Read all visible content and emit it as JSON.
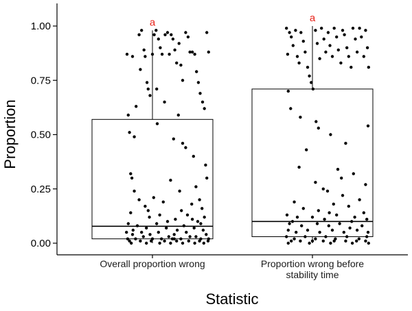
{
  "chart_data": {
    "type": "boxplot",
    "xlabel": "Statistic",
    "ylabel": "Proportion",
    "ylim": [
      -0.05,
      1.1
    ],
    "yticks": [
      0.0,
      0.25,
      0.5,
      0.75,
      1.0
    ],
    "ytick_labels": [
      "0.00",
      "0.25",
      "0.50",
      "0.75",
      "1.00"
    ],
    "grid": false,
    "groups": [
      {
        "label_lines": [
          "Overall proportion wrong"
        ],
        "significance_label": "a",
        "q1": 0.02,
        "median": 0.078,
        "q3": 0.57,
        "whisker_low": 0.0,
        "whisker_high": 0.98,
        "points": [
          [
            -0.42,
            0.87
          ],
          [
            -0.4,
            0.59
          ],
          [
            -0.38,
            0.51
          ],
          [
            -0.36,
            0.32
          ],
          [
            -0.34,
            0.3
          ],
          [
            -0.3,
            0.49
          ],
          [
            -0.27,
            0.63
          ],
          [
            -0.22,
            0.96
          ],
          [
            -0.18,
            0.98
          ],
          [
            -0.14,
            0.89
          ],
          [
            -0.12,
            0.86
          ],
          [
            -0.09,
            0.74
          ],
          [
            -0.07,
            0.71
          ],
          [
            -0.04,
            0.68
          ],
          [
            0.0,
            0.87
          ],
          [
            0.03,
            0.96
          ],
          [
            0.06,
            0.98
          ],
          [
            0.1,
            0.94
          ],
          [
            0.13,
            0.9
          ],
          [
            0.16,
            0.87
          ],
          [
            0.21,
            0.96
          ],
          [
            0.25,
            0.97
          ],
          [
            0.28,
            0.87
          ],
          [
            0.31,
            0.96
          ],
          [
            0.34,
            0.94
          ],
          [
            0.37,
            0.89
          ],
          [
            0.4,
            0.83
          ],
          [
            0.44,
            0.92
          ],
          [
            0.47,
            0.82
          ],
          [
            0.5,
            0.75
          ],
          [
            0.55,
            0.97
          ],
          [
            0.59,
            0.95
          ],
          [
            0.62,
            0.88
          ],
          [
            0.66,
            0.88
          ],
          [
            0.7,
            0.87
          ],
          [
            0.73,
            0.79
          ],
          [
            0.76,
            0.74
          ],
          [
            0.79,
            0.69
          ],
          [
            0.83,
            0.65
          ],
          [
            0.86,
            0.62
          ],
          [
            0.9,
            0.97
          ],
          [
            0.93,
            0.88
          ],
          [
            -0.33,
            0.86
          ],
          [
            -0.2,
            0.8
          ],
          [
            0.07,
            0.71
          ],
          [
            0.2,
            0.65
          ],
          [
            0.43,
            0.59
          ],
          [
            0.08,
            0.55
          ],
          [
            0.35,
            0.48
          ],
          [
            0.5,
            0.46
          ],
          [
            0.55,
            0.44
          ],
          [
            0.68,
            0.4
          ],
          [
            0.88,
            0.36
          ],
          [
            0.3,
            0.29
          ],
          [
            0.72,
            0.26
          ],
          [
            0.45,
            0.24
          ],
          [
            0.78,
            0.2
          ],
          [
            0.9,
            0.3
          ],
          [
            -0.3,
            0.24
          ],
          [
            -0.22,
            0.2
          ],
          [
            -0.12,
            0.17
          ],
          [
            0.02,
            0.21
          ],
          [
            0.18,
            0.19
          ],
          [
            0.48,
            0.15
          ],
          [
            0.65,
            0.18
          ],
          [
            0.82,
            0.16
          ],
          [
            -0.36,
            0.14
          ],
          [
            -0.05,
            0.12
          ],
          [
            0.12,
            0.13
          ],
          [
            0.38,
            0.11
          ],
          [
            0.58,
            0.13
          ],
          [
            0.75,
            0.1
          ],
          [
            0.86,
            0.12
          ],
          [
            -0.4,
            0.09
          ],
          [
            -0.25,
            0.08
          ],
          [
            -0.1,
            0.07
          ],
          [
            0.07,
            0.09
          ],
          [
            0.23,
            0.07
          ],
          [
            0.41,
            0.06
          ],
          [
            0.52,
            0.08
          ],
          [
            0.69,
            0.07
          ],
          [
            0.84,
            0.06
          ],
          [
            -0.43,
            0.05
          ],
          [
            -0.33,
            0.04
          ],
          [
            -0.18,
            0.05
          ],
          [
            -0.04,
            0.04
          ],
          [
            0.1,
            0.05
          ],
          [
            0.27,
            0.03
          ],
          [
            0.36,
            0.04
          ],
          [
            0.56,
            0.05
          ],
          [
            0.72,
            0.03
          ],
          [
            0.89,
            0.04
          ],
          [
            -0.41,
            0.02
          ],
          [
            -0.28,
            0.02
          ],
          [
            -0.15,
            0.03
          ],
          [
            0.0,
            0.02
          ],
          [
            0.15,
            0.02
          ],
          [
            0.33,
            0.02
          ],
          [
            0.47,
            0.02
          ],
          [
            0.62,
            0.03
          ],
          [
            0.8,
            0.02
          ],
          [
            0.93,
            0.02
          ],
          [
            -0.38,
            0.01
          ],
          [
            -0.2,
            0.01
          ],
          [
            -0.02,
            0.01
          ],
          [
            0.2,
            0.01
          ],
          [
            0.4,
            0.01
          ],
          [
            0.6,
            0.01
          ],
          [
            0.78,
            0.01
          ],
          [
            0.92,
            0.01
          ],
          [
            -0.35,
            0.0
          ],
          [
            -0.1,
            0.0
          ],
          [
            0.12,
            0.0
          ],
          [
            0.3,
            0.0
          ],
          [
            0.5,
            0.0
          ],
          [
            0.7,
            0.0
          ],
          [
            0.85,
            0.0
          ],
          [
            -0.32,
            0.06
          ],
          [
            0.25,
            0.1
          ],
          [
            0.66,
            0.11
          ],
          [
            -0.07,
            0.15
          ],
          [
            0.36,
            0.02
          ],
          [
            0.8,
            0.09
          ]
        ]
      },
      {
        "label_lines": [
          "Proportion wrong before",
          "stability time"
        ],
        "significance_label": "a",
        "q1": 0.03,
        "median": 0.1,
        "q3": 0.71,
        "whisker_low": 0.0,
        "whisker_high": 1.0,
        "points": [
          [
            -0.43,
            0.99
          ],
          [
            -0.41,
            0.87
          ],
          [
            -0.4,
            0.7
          ],
          [
            -0.38,
            0.97
          ],
          [
            -0.35,
            0.95
          ],
          [
            -0.32,
            0.91
          ],
          [
            -0.28,
            0.98
          ],
          [
            -0.25,
            0.86
          ],
          [
            -0.22,
            0.83
          ],
          [
            -0.19,
            0.97
          ],
          [
            -0.15,
            0.93
          ],
          [
            -0.12,
            0.88
          ],
          [
            -0.08,
            0.81
          ],
          [
            -0.05,
            0.77
          ],
          [
            -0.02,
            0.74
          ],
          [
            0.01,
            0.71
          ],
          [
            0.05,
            0.98
          ],
          [
            0.08,
            0.92
          ],
          [
            0.12,
            0.85
          ],
          [
            0.15,
            0.99
          ],
          [
            0.19,
            0.94
          ],
          [
            0.22,
            0.88
          ],
          [
            0.26,
            0.97
          ],
          [
            0.29,
            0.91
          ],
          [
            0.33,
            0.86
          ],
          [
            0.36,
            0.99
          ],
          [
            0.4,
            0.95
          ],
          [
            0.43,
            0.89
          ],
          [
            0.47,
            0.83
          ],
          [
            0.5,
            0.98
          ],
          [
            0.53,
            0.96
          ],
          [
            0.57,
            0.9
          ],
          [
            0.6,
            0.86
          ],
          [
            0.64,
            0.81
          ],
          [
            0.67,
            0.99
          ],
          [
            0.71,
            0.94
          ],
          [
            0.74,
            0.88
          ],
          [
            0.78,
            0.99
          ],
          [
            0.81,
            0.95
          ],
          [
            0.85,
            0.86
          ],
          [
            0.88,
            0.98
          ],
          [
            0.91,
            0.9
          ],
          [
            0.93,
            0.81
          ],
          [
            -0.36,
            0.62
          ],
          [
            -0.2,
            0.58
          ],
          [
            0.06,
            0.56
          ],
          [
            0.1,
            0.53
          ],
          [
            0.3,
            0.5
          ],
          [
            0.55,
            0.46
          ],
          [
            -0.1,
            0.43
          ],
          [
            0.42,
            0.34
          ],
          [
            0.68,
            0.32
          ],
          [
            0.92,
            0.54
          ],
          [
            0.05,
            0.28
          ],
          [
            0.18,
            0.25
          ],
          [
            0.25,
            0.24
          ],
          [
            0.5,
            0.22
          ],
          [
            0.78,
            0.2
          ],
          [
            -0.3,
            0.19
          ],
          [
            0.35,
            0.18
          ],
          [
            -0.15,
            0.16
          ],
          [
            0.1,
            0.15
          ],
          [
            0.6,
            0.17
          ],
          [
            0.85,
            0.14
          ],
          [
            -0.42,
            0.13
          ],
          [
            -0.25,
            0.12
          ],
          [
            0.0,
            0.12
          ],
          [
            0.2,
            0.11
          ],
          [
            0.4,
            0.13
          ],
          [
            0.7,
            0.12
          ],
          [
            0.9,
            0.11
          ],
          [
            -0.38,
            0.09
          ],
          [
            -0.18,
            0.08
          ],
          [
            0.08,
            0.09
          ],
          [
            0.27,
            0.08
          ],
          [
            0.45,
            0.09
          ],
          [
            0.62,
            0.07
          ],
          [
            0.82,
            0.08
          ],
          [
            -0.4,
            0.06
          ],
          [
            -0.27,
            0.05
          ],
          [
            -0.08,
            0.06
          ],
          [
            0.12,
            0.05
          ],
          [
            0.33,
            0.06
          ],
          [
            0.52,
            0.05
          ],
          [
            0.74,
            0.06
          ],
          [
            0.92,
            0.05
          ],
          [
            -0.43,
            0.03
          ],
          [
            -0.3,
            0.02
          ],
          [
            -0.12,
            0.03
          ],
          [
            0.05,
            0.02
          ],
          [
            0.22,
            0.03
          ],
          [
            0.38,
            0.02
          ],
          [
            0.57,
            0.03
          ],
          [
            0.77,
            0.02
          ],
          [
            0.9,
            0.03
          ],
          [
            -0.35,
            0.01
          ],
          [
            -0.2,
            0.01
          ],
          [
            0.0,
            0.01
          ],
          [
            0.18,
            0.01
          ],
          [
            0.36,
            0.01
          ],
          [
            0.55,
            0.01
          ],
          [
            0.73,
            0.01
          ],
          [
            0.88,
            0.01
          ],
          [
            -0.4,
            0.0
          ],
          [
            -0.05,
            0.0
          ],
          [
            0.3,
            0.0
          ],
          [
            0.66,
            0.0
          ],
          [
            0.93,
            0.0
          ],
          [
            -0.22,
            0.35
          ],
          [
            0.48,
            0.3
          ],
          [
            0.88,
            0.27
          ],
          [
            -0.33,
            0.1
          ],
          [
            0.28,
            0.14
          ],
          [
            0.65,
            0.1
          ]
        ]
      }
    ]
  }
}
